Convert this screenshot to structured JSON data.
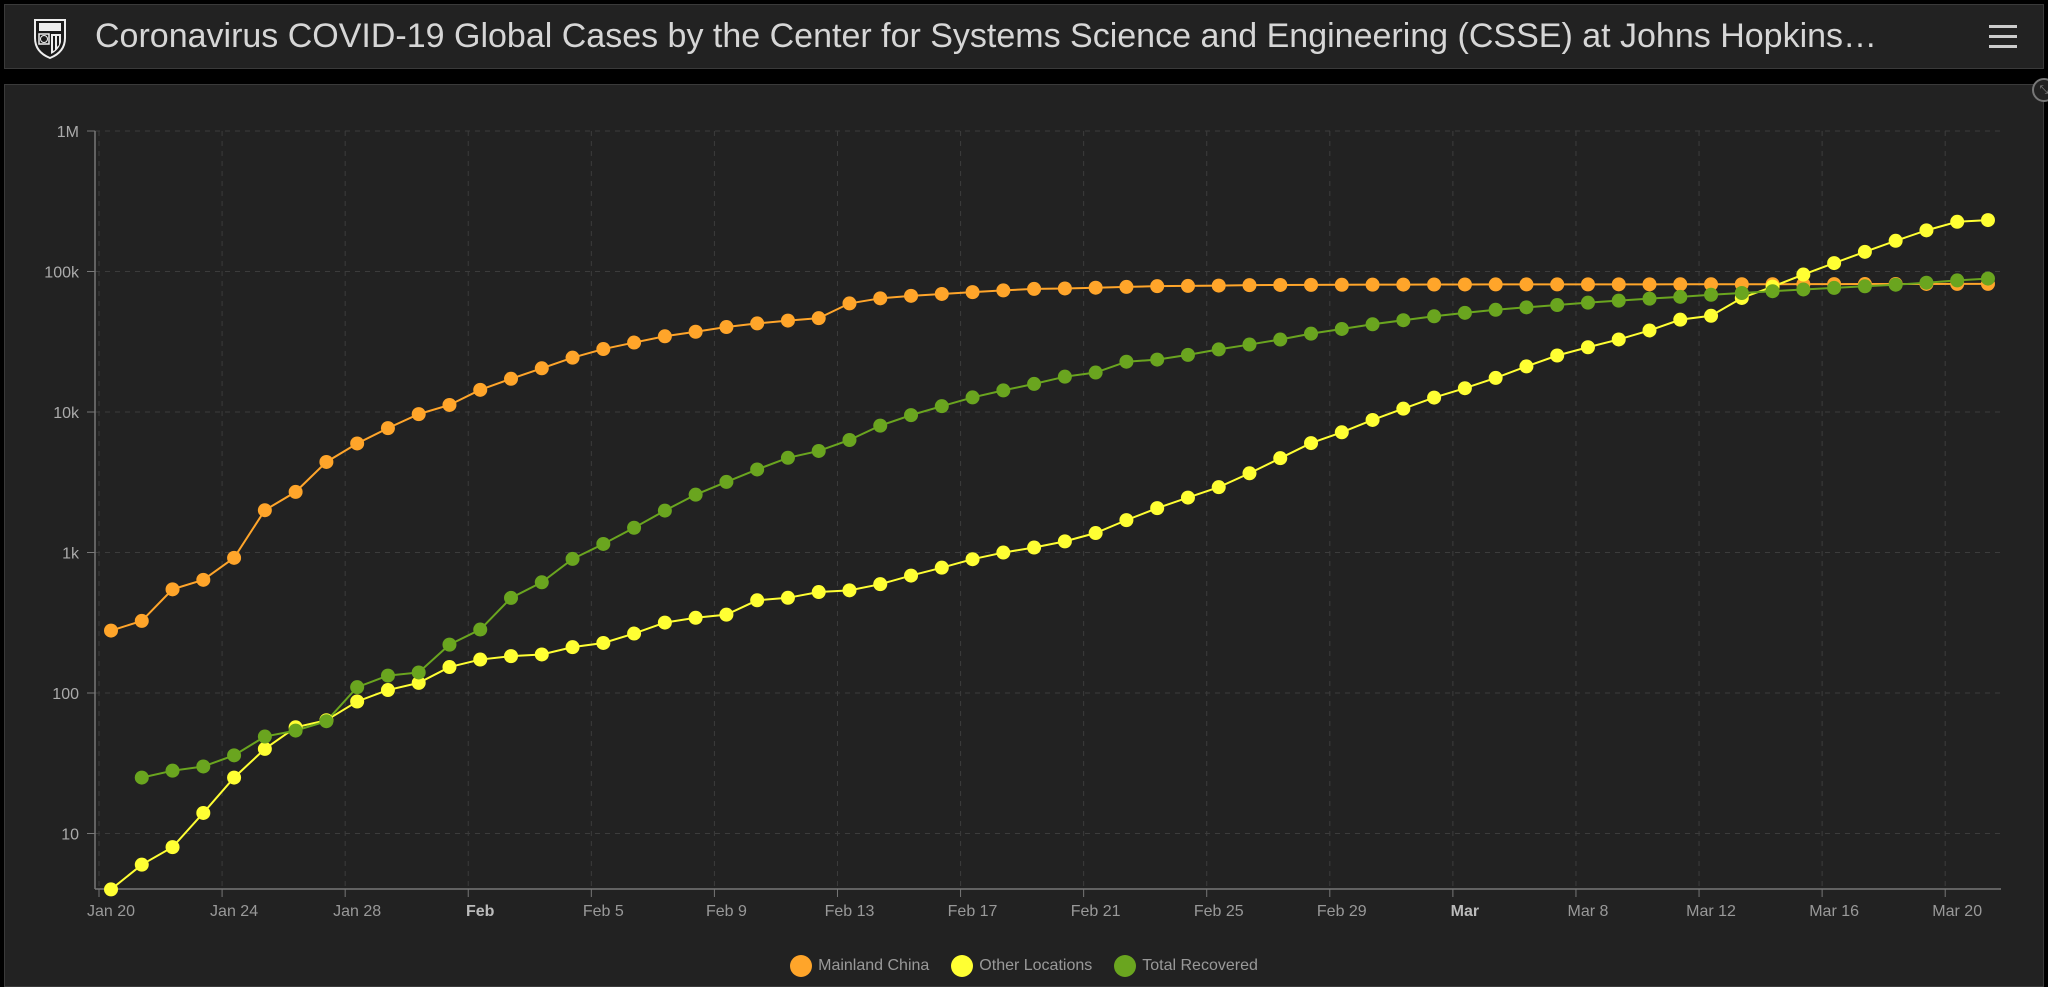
{
  "header": {
    "title": "Coronavirus COVID-19 Global Cases by the Center for Systems Science and Engineering (CSSE) at Johns Hopkins…",
    "logo": "jhu-shield-icon",
    "menu_icon": "hamburger-menu-icon"
  },
  "panel": {
    "collapse_icon": "collapse-icon"
  },
  "chart_data": {
    "type": "line",
    "title": "",
    "xlabel": "",
    "ylabel": "",
    "yscale": "log",
    "ylim": [
      4,
      1000000
    ],
    "y_ticks": [
      {
        "value": 10,
        "label": "10"
      },
      {
        "value": 100,
        "label": "100"
      },
      {
        "value": 1000,
        "label": "1k"
      },
      {
        "value": 10000,
        "label": "10k"
      },
      {
        "value": 100000,
        "label": "100k"
      },
      {
        "value": 1000000,
        "label": "1M"
      }
    ],
    "x_ticks": [
      {
        "index": 0,
        "label": "Jan 20",
        "bold": false
      },
      {
        "index": 4,
        "label": "Jan 24",
        "bold": false
      },
      {
        "index": 8,
        "label": "Jan 28",
        "bold": false
      },
      {
        "index": 12,
        "label": "Feb",
        "bold": true
      },
      {
        "index": 16,
        "label": "Feb 5",
        "bold": false
      },
      {
        "index": 20,
        "label": "Feb 9",
        "bold": false
      },
      {
        "index": 24,
        "label": "Feb 13",
        "bold": false
      },
      {
        "index": 28,
        "label": "Feb 17",
        "bold": false
      },
      {
        "index": 32,
        "label": "Feb 21",
        "bold": false
      },
      {
        "index": 36,
        "label": "Feb 25",
        "bold": false
      },
      {
        "index": 40,
        "label": "Feb 29",
        "bold": false
      },
      {
        "index": 44,
        "label": "Mar",
        "bold": true
      },
      {
        "index": 48,
        "label": "Mar 8",
        "bold": false
      },
      {
        "index": 52,
        "label": "Mar 12",
        "bold": false
      },
      {
        "index": 56,
        "label": "Mar 16",
        "bold": false
      },
      {
        "index": 60,
        "label": "Mar 20",
        "bold": false
      }
    ],
    "grid": true,
    "legend_position": "bottom-center",
    "series": [
      {
        "name": "Mainland China",
        "color": "#ffa52a",
        "start_index": 0,
        "values": [
          278,
          326,
          547,
          639,
          916,
          2000,
          2700,
          4409,
          5970,
          7678,
          9658,
          11221,
          14375,
          17238,
          20471,
          24363,
          28060,
          31211,
          34598,
          37251,
          40235,
          42708,
          44730,
          46550,
          59283,
          64437,
          67100,
          69197,
          71329,
          73332,
          75184,
          75700,
          76677,
          77673,
          78651,
          78960,
          79394,
          79968,
          80174,
          80302,
          80422,
          80565,
          80710,
          80813,
          80859,
          80904,
          80924,
          80955,
          80981,
          80995,
          81029,
          81062,
          81099,
          81140,
          81197,
          81263,
          81305,
          81417,
          81472,
          81528,
          81609,
          81650
        ]
      },
      {
        "name": "Other Locations",
        "color": "#ffff33",
        "start_index": 0,
        "values": [
          4,
          6,
          8,
          14,
          25,
          40,
          57,
          64,
          87,
          105,
          118,
          153,
          173,
          183,
          188,
          212,
          227,
          265,
          317,
          343,
          361,
          457,
          476,
          523,
          538,
          595,
          685,
          780,
          896,
          999,
          1085,
          1200,
          1376,
          1700,
          2069,
          2459,
          2918,
          3664,
          4691,
          6009,
          7169,
          8774,
          10566,
          12668,
          14768,
          17481,
          21110,
          25243,
          28897,
          32838,
          38059,
          45416,
          48394,
          64800,
          78042,
          95116,
          114740,
          138020,
          165430,
          196260,
          225870,
          232300
        ]
      },
      {
        "name": "Total Recovered",
        "color": "#6aa51f",
        "start_index": 1,
        "values": [
          25,
          28,
          30,
          36,
          49,
          54,
          63,
          110,
          133,
          140,
          221,
          283,
          475,
          614,
          900,
          1150,
          1500,
          1988,
          2580,
          3180,
          3900,
          4720,
          5280,
          6320,
          8000,
          9500,
          11000,
          12700,
          14250,
          15850,
          17840,
          19100,
          22800,
          23600,
          25500,
          27900,
          30200,
          32800,
          36100,
          39000,
          42100,
          45000,
          48000,
          50800,
          53400,
          55600,
          57700,
          60000,
          62000,
          64100,
          66000,
          68300,
          70300,
          72400,
          74500,
          76400,
          78500,
          80500,
          83200,
          86400,
          89000
        ]
      }
    ]
  }
}
